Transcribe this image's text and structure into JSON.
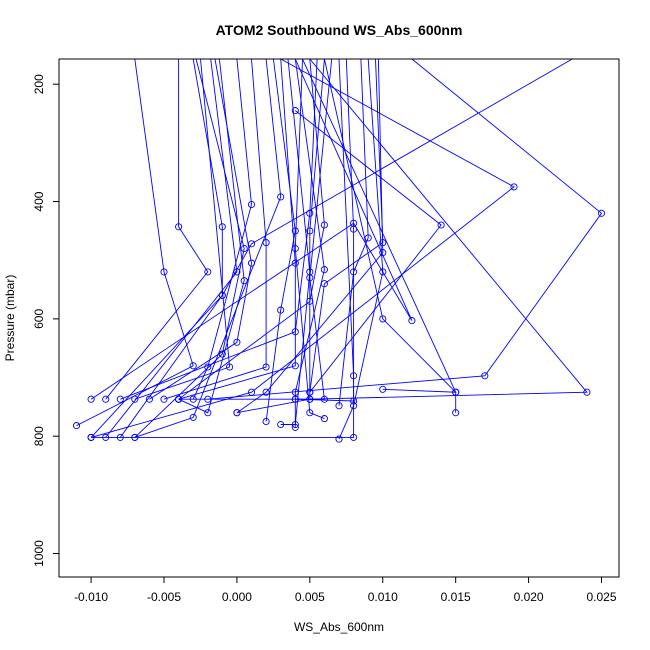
{
  "chart_data": {
    "type": "line",
    "title": "ATOM2 Southbound WS_Abs_600nm",
    "xlabel": "WS_Abs_600nm",
    "ylabel": "Pressure (mbar)",
    "xlim": [
      -0.0122,
      0.0262
    ],
    "ylim": [
      1040,
      157
    ],
    "y_reversed": true,
    "x_ticks": [
      -0.01,
      -0.005,
      0.0,
      0.005,
      0.01,
      0.015,
      0.02,
      0.025
    ],
    "x_tick_labels": [
      "-0.010",
      "-0.005",
      "0.000",
      "0.005",
      "0.010",
      "0.015",
      "0.020",
      "0.025"
    ],
    "y_ticks": [
      200,
      400,
      600,
      800,
      1000
    ],
    "y_tick_labels": [
      "200",
      "400",
      "600",
      "800",
      "1000"
    ],
    "grid": false,
    "legend": "none",
    "color": "#0000ff",
    "series": [
      {
        "x": [
          0.023,
          0.001,
          -0.001,
          -0.01
        ],
        "y": [
          157,
          472,
          560,
          802
        ]
      },
      {
        "x": [
          -0.004,
          -0.004,
          -0.002,
          -0.009
        ],
        "y": [
          157,
          443,
          520,
          737
        ]
      },
      {
        "x": [
          -0.007,
          -0.005,
          -0.003,
          -0.011
        ],
        "y": [
          157,
          520,
          680,
          782
        ]
      },
      {
        "x": [
          -0.003,
          -0.001,
          -0.001,
          -0.008
        ],
        "y": [
          157,
          443,
          560,
          802
        ]
      },
      {
        "x": [
          -0.0025,
          -0.0005,
          -0.007
        ],
        "y": [
          157,
          682,
          737
        ]
      },
      {
        "x": [
          -0.0028,
          0.0005,
          -0.001,
          -0.007
        ],
        "y": [
          157,
          480,
          660,
          802
        ]
      },
      {
        "x": [
          0.0,
          0.001,
          -0.002,
          -0.003
        ],
        "y": [
          157,
          405,
          682,
          737
        ]
      },
      {
        "x": [
          -0.0018,
          0.0,
          -0.009
        ],
        "y": [
          157,
          520,
          802
        ]
      },
      {
        "x": [
          -0.0015,
          0.001,
          0.0,
          -0.006
        ],
        "y": [
          157,
          505,
          640,
          737
        ]
      },
      {
        "x": [
          -0.0012,
          0.0005,
          -0.002,
          -0.004
        ],
        "y": [
          157,
          535,
          760,
          737
        ]
      },
      {
        "x": [
          0.001,
          0.002,
          0.002,
          -0.005
        ],
        "y": [
          157,
          470,
          682,
          737
        ]
      },
      {
        "x": [
          0.002,
          0.003,
          -0.003,
          -0.007
        ],
        "y": [
          157,
          392,
          768,
          802
        ]
      },
      {
        "x": [
          0.0025,
          0.004,
          0.003,
          0.002
        ],
        "y": [
          157,
          450,
          585,
          775
        ]
      },
      {
        "x": [
          0.003,
          0.004,
          0.004,
          -0.004
        ],
        "y": [
          157,
          505,
          680,
          737
        ]
      },
      {
        "x": [
          0.0035,
          0.005,
          0.004,
          0.003
        ],
        "y": [
          157,
          520,
          780,
          780
        ]
      },
      {
        "x": [
          0.004,
          0.006,
          0.004,
          0.004
        ],
        "y": [
          157,
          516,
          725,
          785
        ]
      },
      {
        "x": [
          0.0045,
          0.004,
          0.005,
          0.006
        ],
        "y": [
          157,
          480,
          760,
          770
        ]
      },
      {
        "x": [
          0.005,
          0.006,
          0.005,
          -0.004
        ],
        "y": [
          157,
          440,
          570,
          737
        ]
      },
      {
        "x": [
          0.0055,
          0.005,
          0.004,
          -0.008
        ],
        "y": [
          157,
          420,
          622,
          737
        ]
      },
      {
        "x": [
          0.006,
          0.005,
          0.005,
          0.004
        ],
        "y": [
          157,
          450,
          737,
          737
        ]
      },
      {
        "x": [
          0.0065,
          0.005,
          0.006,
          -0.004
        ],
        "y": [
          157,
          530,
          737,
          737
        ]
      },
      {
        "x": [
          0.0075,
          0.008,
          0.008,
          0.004
        ],
        "y": [
          157,
          447,
          740,
          737
        ]
      },
      {
        "x": [
          0.0085,
          0.009,
          0.008,
          0.007
        ],
        "y": [
          157,
          462,
          520,
          748
        ]
      },
      {
        "x": [
          0.0095,
          0.01,
          0.006,
          0.005
        ],
        "y": [
          157,
          470,
          540,
          725
        ]
      },
      {
        "x": [
          0.0097,
          0.01,
          0.002,
          0.0
        ],
        "y": [
          157,
          487,
          725,
          760
        ]
      },
      {
        "x": [
          0.009,
          0.01,
          0.008,
          0.007
        ],
        "y": [
          157,
          520,
          748,
          805
        ]
      },
      {
        "x": [
          0.0045,
          0.015,
          0.015
        ],
        "y": [
          157,
          725,
          760
        ]
      },
      {
        "x": [
          0.004,
          0.014,
          0.005
        ],
        "y": [
          245,
          440,
          725
        ]
      },
      {
        "x": [
          0.003,
          0.019,
          0.001,
          -0.01
        ],
        "y": [
          157,
          375,
          725,
          802
        ]
      },
      {
        "x": [
          0.012,
          0.025,
          0.017,
          -0.002
        ],
        "y": [
          157,
          420,
          697,
          737
        ]
      },
      {
        "x": [
          0.005,
          0.024,
          0.005,
          0.0
        ],
        "y": [
          157,
          725,
          737,
          760
        ]
      },
      {
        "x": [
          0.004,
          0.012,
          0.008,
          -0.01
        ],
        "y": [
          157,
          603,
          437,
          737
        ]
      },
      {
        "x": [
          0.006,
          0.01,
          0.015,
          0.01
        ],
        "y": [
          157,
          600,
          725,
          720
        ]
      },
      {
        "x": [
          0.007,
          0.008,
          0.008,
          -0.01
        ],
        "y": [
          157,
          697,
          802,
          802
        ]
      }
    ]
  }
}
